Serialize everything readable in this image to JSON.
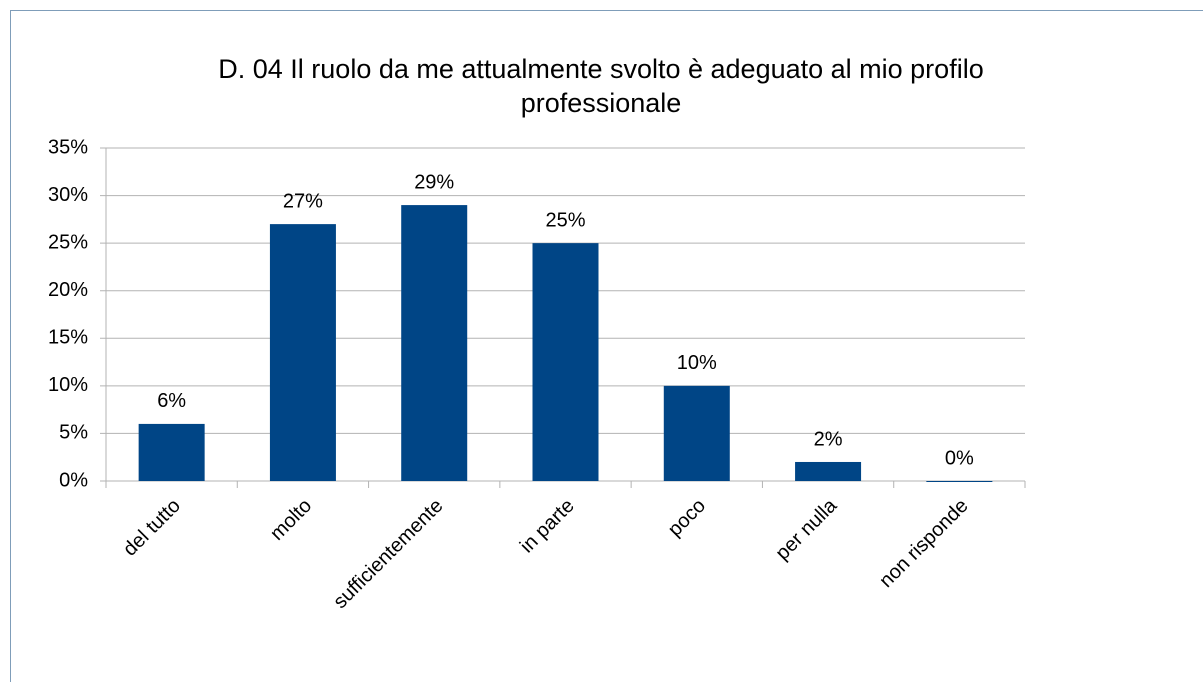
{
  "chart_data": {
    "type": "bar",
    "title": "D. 04 Il ruolo da me attualmente svolto è adeguato al mio profilo professionale",
    "categories": [
      "del tutto",
      "molto",
      "sufficientemente",
      "in parte",
      "poco",
      "per nulla",
      "non risponde"
    ],
    "values": [
      6,
      27,
      29,
      25,
      10,
      2,
      0
    ],
    "value_labels": [
      "6%",
      "27%",
      "29%",
      "25%",
      "10%",
      "2%",
      "0%"
    ],
    "color": "#004586",
    "ylim": [
      0,
      35
    ],
    "yticks": [
      {
        "value": 0,
        "label": "0%"
      },
      {
        "value": 5,
        "label": "5%"
      },
      {
        "value": 10,
        "label": "10%"
      },
      {
        "value": 15,
        "label": "15%"
      },
      {
        "value": 20,
        "label": "20%"
      },
      {
        "value": 25,
        "label": "25%"
      },
      {
        "value": 30,
        "label": "30%"
      },
      {
        "value": 35,
        "label": "35%"
      }
    ],
    "grid": true
  }
}
